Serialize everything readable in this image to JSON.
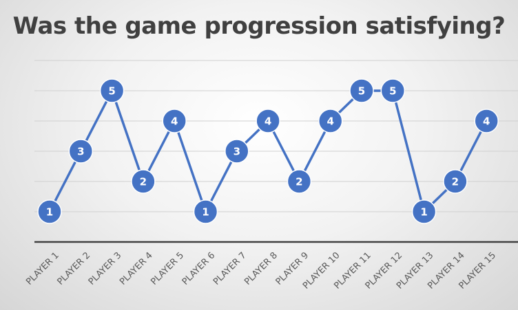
{
  "chart_data": {
    "type": "line",
    "title": "Was the game progression satisfying?",
    "categories": [
      "PLAYER 1",
      "PLAYER 2",
      "PLAYER 3",
      "PLAYER 4",
      "PLAYER 5",
      "PLAYER 6",
      "PLAYER 7",
      "PLAYER 8",
      "PLAYER 9",
      "PLAYER 10",
      "PLAYER 11",
      "PLAYER 12",
      "PLAYER 13",
      "PLAYER 14",
      "PLAYER 15"
    ],
    "series": [
      {
        "values": [
          1,
          3,
          5,
          2,
          4,
          1,
          3,
          4,
          2,
          4,
          5,
          5,
          1,
          2,
          4
        ]
      }
    ],
    "ylim": [
      0,
      6
    ],
    "grid": true,
    "legend": "none",
    "data_labels": true,
    "colors": {
      "line": "#4472C4",
      "gridline": "#d0d0d0",
      "axis": "#404040"
    }
  }
}
